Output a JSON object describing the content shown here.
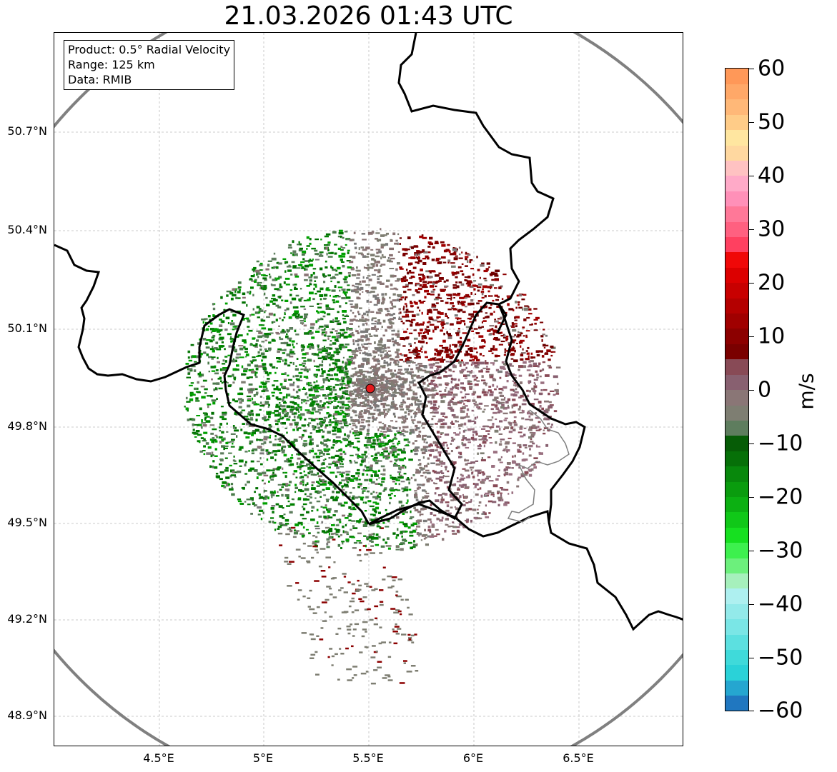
{
  "title": "21.03.2026 01:43 UTC",
  "info": {
    "product": "Product: 0.5° Radial Velocity",
    "range": "Range: 125 km",
    "data": "Data: RMIB"
  },
  "axes": {
    "lat_labels": [
      "50.7°N",
      "50.4°N",
      "50.1°N",
      "49.8°N",
      "49.5°N",
      "49.2°N",
      "48.9°N"
    ],
    "lon_labels": [
      "4.5°E",
      "5°E",
      "5.5°E",
      "6°E",
      "6.5°E"
    ]
  },
  "colorbar": {
    "unit": "m/s",
    "ticks": [
      "60",
      "50",
      "40",
      "30",
      "20",
      "10",
      "0",
      "−10",
      "−20",
      "−30",
      "−40",
      "−50",
      "−60"
    ],
    "colors": [
      "#2077c0",
      "#25a6d0",
      "#2ad2d8",
      "#3fdada",
      "#5ce0e0",
      "#7ae6e6",
      "#93eaea",
      "#aef0f0",
      "#a6f0bc",
      "#6cf07c",
      "#3df04e",
      "#16e020",
      "#10c818",
      "#0cb012",
      "#0a9c0e",
      "#08880c",
      "#067008",
      "#065c06",
      "#5e7d5e",
      "#7e7e72",
      "#8a7676",
      "#886070",
      "#884a56",
      "#7a0000",
      "#8c0000",
      "#a00000",
      "#b40000",
      "#c80000",
      "#dc0000",
      "#f00808",
      "#ff4060",
      "#ff6080",
      "#ff7898",
      "#ff90b8",
      "#ffaac8",
      "#ffc2c2",
      "#ffd8a0",
      "#ffe6a0",
      "#ffcc88",
      "#ffb878",
      "#ffa868",
      "#ff9858"
    ],
    "radar_site_color": "#e31a1c",
    "range_ring_color": "#808080"
  }
}
